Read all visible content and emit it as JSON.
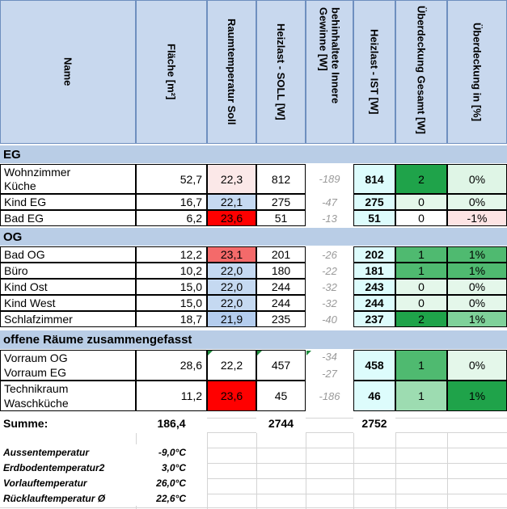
{
  "headers": {
    "name": "Name",
    "flaeche": "Fläche [m²]",
    "raumtemp": "Raumtemperatur Soll",
    "heizlast_soll": "Heizlast - SOLL [W]",
    "gewinne": "behinhaltete Innere Gewinne [W]",
    "heizlast_ist": "Heizlast - IST [W]",
    "ueber_gesamt": "Überdeckung Gesamt [W]",
    "ueber_prozent": "Überdeckung in [%]"
  },
  "sections": {
    "eg": "EG",
    "og": "OG",
    "offen": "offene Räume zusammengefasst"
  },
  "rows": {
    "wohnzimmer": {
      "name1": "Wohnzimmer",
      "name2": "Küche",
      "flaeche": "52,7",
      "temp": "22,3",
      "soll": "812",
      "gewinne": "-189",
      "ist": "814",
      "ueber": "2",
      "prozent": "0%"
    },
    "kind_eg": {
      "name": "Kind EG",
      "flaeche": "16,7",
      "temp": "22,1",
      "soll": "275",
      "gewinne": "-47",
      "ist": "275",
      "ueber": "0",
      "prozent": "0%"
    },
    "bad_eg": {
      "name": "Bad EG",
      "flaeche": "6,2",
      "temp": "23,6",
      "soll": "51",
      "gewinne": "-13",
      "ist": "51",
      "ueber": "0",
      "prozent": "-1%"
    },
    "bad_og": {
      "name": "Bad OG",
      "flaeche": "12,2",
      "temp": "23,1",
      "soll": "201",
      "gewinne": "-26",
      "ist": "202",
      "ueber": "1",
      "prozent": "1%"
    },
    "buero": {
      "name": "Büro",
      "flaeche": "10,2",
      "temp": "22,0",
      "soll": "180",
      "gewinne": "-22",
      "ist": "181",
      "ueber": "1",
      "prozent": "1%"
    },
    "kind_ost": {
      "name": "Kind Ost",
      "flaeche": "15,0",
      "temp": "22,0",
      "soll": "244",
      "gewinne": "-32",
      "ist": "243",
      "ueber": "0",
      "prozent": "0%"
    },
    "kind_west": {
      "name": "Kind West",
      "flaeche": "15,0",
      "temp": "22,0",
      "soll": "244",
      "gewinne": "-32",
      "ist": "244",
      "ueber": "0",
      "prozent": "0%"
    },
    "schlafzimmer": {
      "name": "Schlafzimmer",
      "flaeche": "18,7",
      "temp": "21,9",
      "soll": "235",
      "gewinne": "-40",
      "ist": "237",
      "ueber": "2",
      "prozent": "1%"
    },
    "vorraum": {
      "name1": "Vorraum OG",
      "name2": "Vorraum EG",
      "flaeche": "28,6",
      "temp": "22,2",
      "soll": "457",
      "gewinne1": "-34",
      "gewinne2": "-27",
      "ist": "458",
      "ueber": "1",
      "prozent": "0%"
    },
    "technik": {
      "name1": "Technikraum",
      "name2": "Waschküche",
      "flaeche": "11,2",
      "temp": "23,6",
      "soll": "45",
      "gewinne": "-186",
      "ist": "46",
      "ueber": "1",
      "prozent": "1%"
    }
  },
  "summe": {
    "label": "Summe:",
    "flaeche": "186,4",
    "soll": "2744",
    "ist": "2752"
  },
  "footer": {
    "aussen_label": "Aussentemperatur",
    "aussen_value": "-9,0°C",
    "erdboden_label": "Erdbodentemperatur2",
    "erdboden_value": "3,0°C",
    "vorlauf_label": "Vorlauftemperatur",
    "vorlauf_value": "26,0°C",
    "ruecklauf_label": "Rücklauftemperatur Ø",
    "ruecklauf_value": "22,6°C"
  },
  "colors": {
    "header_bg": "#c8d8ee",
    "section_bg": "#b9cde6",
    "temp_light_blue": "#c5d9f1",
    "temp_red": "#ff0000",
    "temp_salmon": "#f46a6a",
    "ist_cyan": "#ddfcfc",
    "green_dark": "#5bbf79",
    "green_mid": "#7fd19a",
    "green_light": "#c9efd5",
    "green_pale": "#e4f7ea",
    "pink": "#fde4e4"
  }
}
